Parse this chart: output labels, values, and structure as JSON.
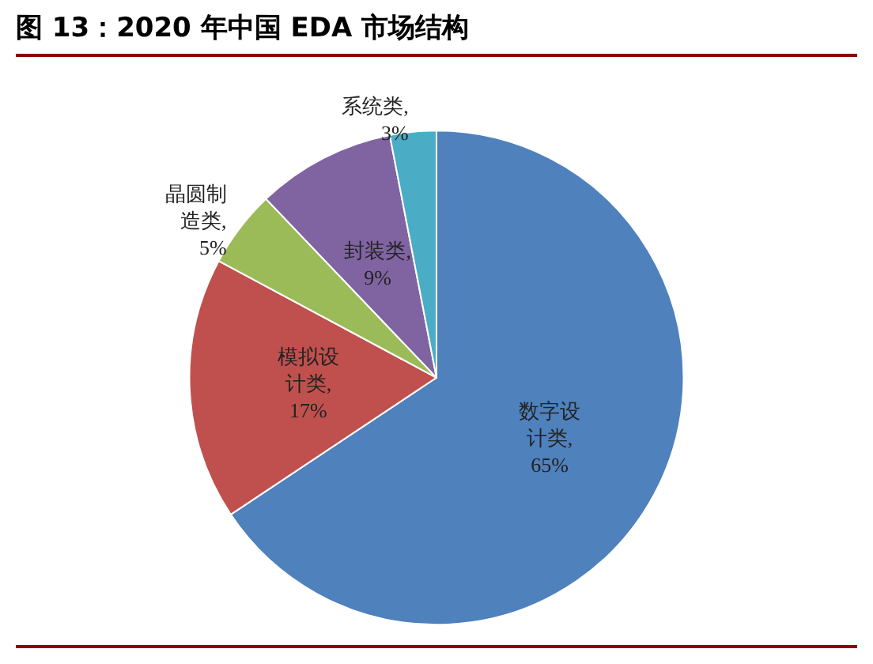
{
  "chart_data": {
    "type": "pie",
    "title": "图 13：2020 年中国 EDA 市场结构",
    "categories": [
      "数字设计类",
      "模拟设计类",
      "晶圆制造类",
      "封装类",
      "系统类"
    ],
    "value_labels": [
      ", 65%",
      ", 17%",
      ", 5%",
      ", 9%",
      ", 3%"
    ],
    "values": [
      65,
      17,
      5,
      9,
      3
    ],
    "colors": [
      "#4f81bd",
      "#c0504d",
      "#9bbb59",
      "#8064a2",
      "#4bacc6"
    ],
    "legend": false
  }
}
